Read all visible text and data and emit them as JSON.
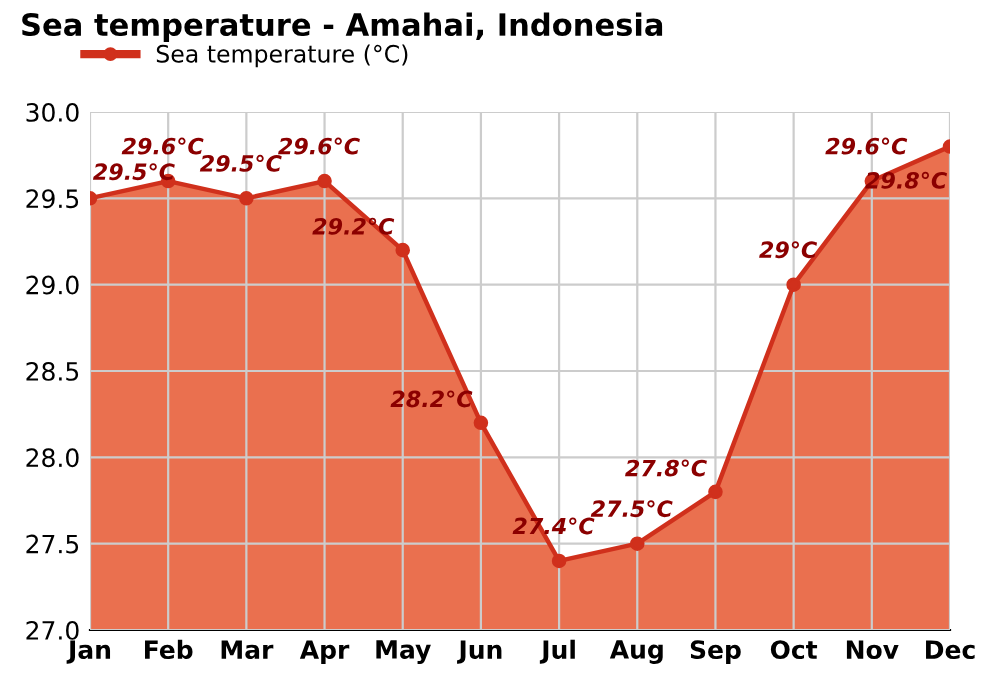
{
  "chart_data": {
    "type": "area",
    "title": "Sea temperature - Amahai, Indonesia",
    "categories": [
      "Jan",
      "Feb",
      "Mar",
      "Apr",
      "May",
      "Jun",
      "Jul",
      "Aug",
      "Sep",
      "Oct",
      "Nov",
      "Dec"
    ],
    "series": [
      {
        "name": "Sea temperature (°C)",
        "color": "#d0301c",
        "values": [
          29.5,
          29.6,
          29.5,
          29.6,
          29.2,
          28.2,
          27.4,
          27.5,
          27.8,
          29.0,
          29.6,
          29.8
        ],
        "value_labels": [
          "29.5°C",
          "29.6°C",
          "29.5°C",
          "29.6°C",
          "29.2°C",
          "28.2°C",
          "27.4°C",
          "27.5°C",
          "27.8°C",
          "29°C",
          "29.6°C",
          "29.8°C"
        ]
      }
    ],
    "ylim": [
      27.0,
      30.0
    ],
    "yticks": [
      "27.0",
      "27.5",
      "28.0",
      "28.5",
      "29.0",
      "29.5",
      "30.0"
    ],
    "grid": true,
    "legend": "top left",
    "marker": "circle",
    "line_style": "solid"
  }
}
